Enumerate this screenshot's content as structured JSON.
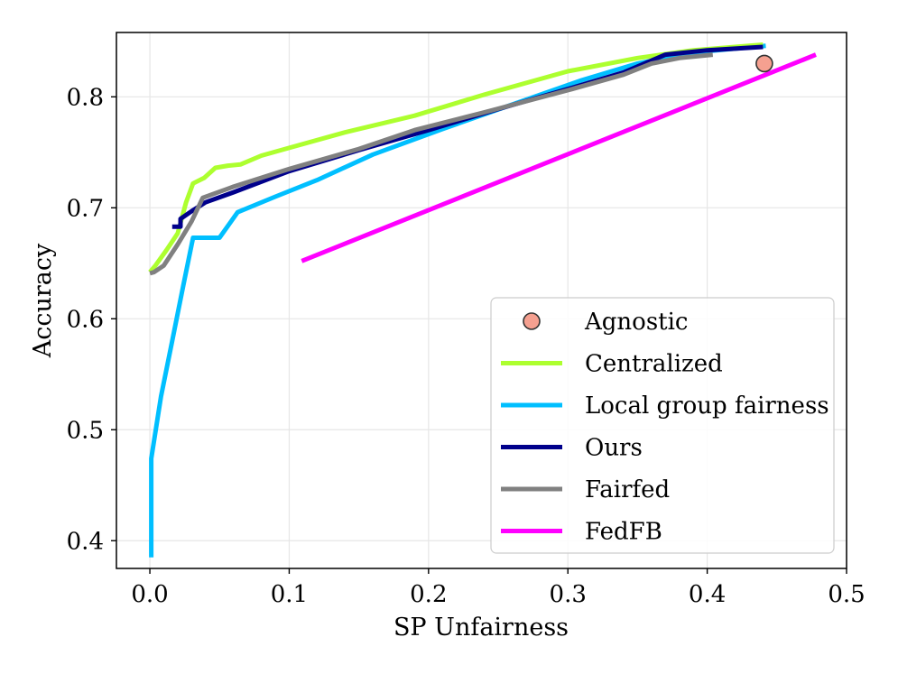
{
  "chart_data": {
    "type": "line",
    "title": "",
    "xlabel": "SP Unfairness",
    "ylabel": "Accuracy",
    "xlim": [
      -0.024,
      0.5
    ],
    "ylim": [
      0.375,
      0.858
    ],
    "xticks": [
      0.0,
      0.1,
      0.2,
      0.3,
      0.4,
      0.5
    ],
    "xtick_labels": [
      "0.0",
      "0.1",
      "0.2",
      "0.3",
      "0.4",
      "0.5"
    ],
    "yticks": [
      0.4,
      0.5,
      0.6,
      0.7,
      0.8
    ],
    "ytick_labels": [
      "0.4",
      "0.5",
      "0.6",
      "0.7",
      "0.8"
    ],
    "grid": true,
    "legend_position": "lower-right",
    "series": [
      {
        "name": "Centralized",
        "color": "#adff2f",
        "x": [
          0.0,
          0.004,
          0.012,
          0.02,
          0.026,
          0.031,
          0.039,
          0.047,
          0.056,
          0.065,
          0.08,
          0.1,
          0.14,
          0.19,
          0.24,
          0.3,
          0.35,
          0.39,
          0.44
        ],
        "y": [
          0.642,
          0.648,
          0.662,
          0.677,
          0.705,
          0.722,
          0.727,
          0.736,
          0.738,
          0.739,
          0.747,
          0.754,
          0.768,
          0.783,
          0.802,
          0.823,
          0.835,
          0.842,
          0.847
        ]
      },
      {
        "name": "Local group fairness",
        "color": "#00bfff",
        "x": [
          0.001,
          0.001,
          0.001,
          0.008,
          0.016,
          0.024,
          0.031,
          0.04,
          0.05,
          0.063,
          0.09,
          0.12,
          0.16,
          0.21,
          0.26,
          0.31,
          0.35,
          0.39,
          0.442
        ],
        "y": [
          0.385,
          0.474,
          0.474,
          0.53,
          0.58,
          0.63,
          0.673,
          0.673,
          0.673,
          0.696,
          0.71,
          0.725,
          0.748,
          0.771,
          0.793,
          0.815,
          0.83,
          0.84,
          0.846
        ]
      },
      {
        "name": "Ours",
        "color": "#00008b",
        "x": [
          0.016,
          0.022,
          0.022,
          0.03,
          0.04,
          0.06,
          0.1,
          0.15,
          0.2,
          0.25,
          0.3,
          0.34,
          0.37,
          0.4,
          0.44
        ],
        "y": [
          0.683,
          0.683,
          0.69,
          0.697,
          0.705,
          0.714,
          0.733,
          0.752,
          0.77,
          0.789,
          0.807,
          0.822,
          0.838,
          0.842,
          0.845
        ]
      },
      {
        "name": "Fairfed",
        "color": "#808080",
        "x": [
          0.0,
          0.003,
          0.01,
          0.02,
          0.03,
          0.038,
          0.06,
          0.1,
          0.15,
          0.19,
          0.24,
          0.3,
          0.34,
          0.36,
          0.38,
          0.404
        ],
        "y": [
          0.641,
          0.642,
          0.648,
          0.667,
          0.688,
          0.709,
          0.719,
          0.735,
          0.753,
          0.77,
          0.786,
          0.806,
          0.82,
          0.83,
          0.835,
          0.838
        ]
      },
      {
        "name": "FedFB",
        "color": "#ff00ff",
        "x": [
          0.109,
          0.478
        ],
        "y": [
          0.652,
          0.838
        ]
      }
    ],
    "points": [
      {
        "name": "Agnostic",
        "color": "#f5a090",
        "x": 0.441,
        "y": 0.83
      }
    ],
    "legend": [
      "Agnostic",
      "Centralized",
      "Local group fairness",
      "Ours",
      "Fairfed",
      "FedFB"
    ]
  }
}
